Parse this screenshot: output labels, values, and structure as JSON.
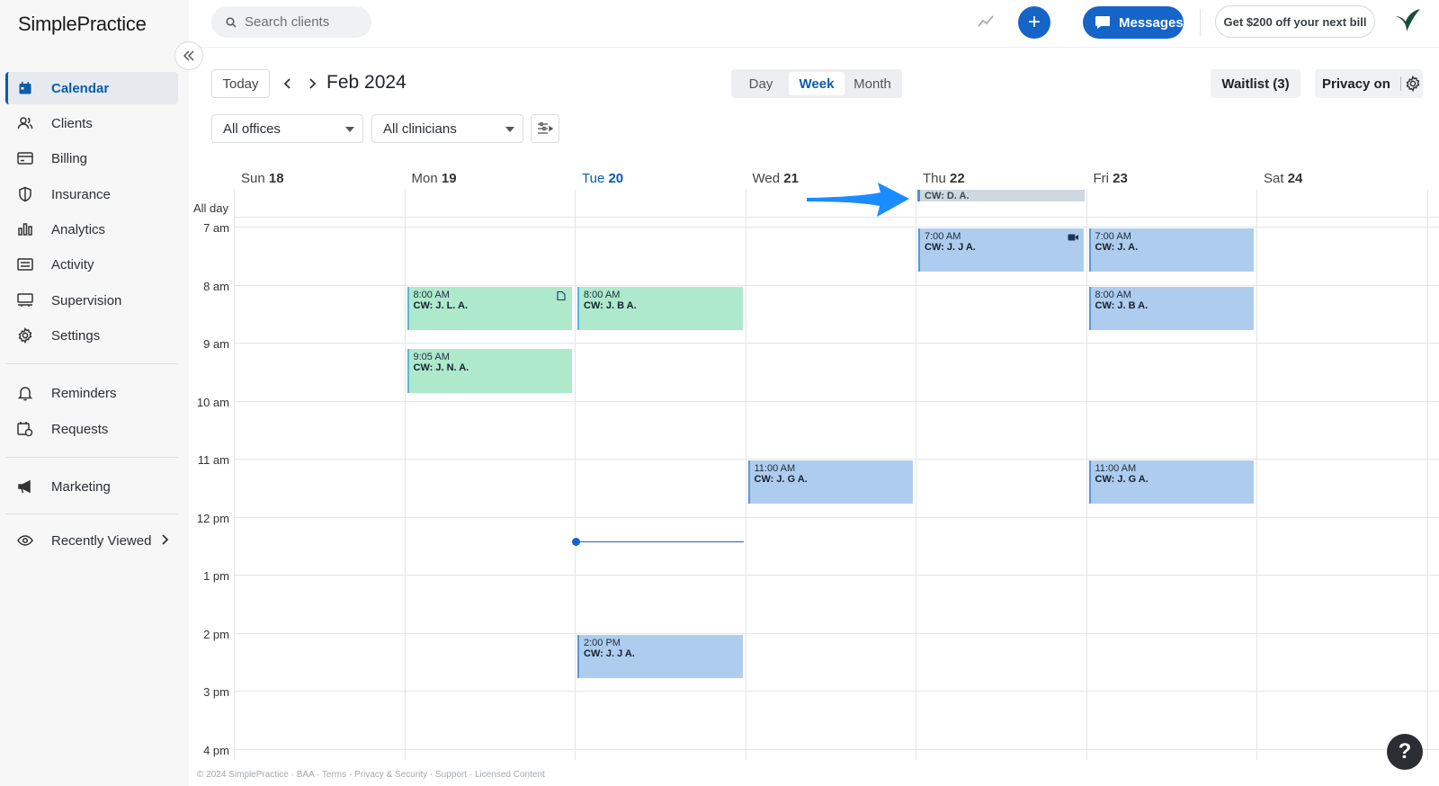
{
  "brand": {
    "logo_text": "SimplePractice",
    "accent": "#1565c8"
  },
  "sidebar": {
    "items": [
      {
        "label": "Calendar",
        "icon": "calendar-icon",
        "active": true
      },
      {
        "label": "Clients",
        "icon": "users-icon"
      },
      {
        "label": "Billing",
        "icon": "credit-card-icon"
      },
      {
        "label": "Insurance",
        "icon": "shield-icon"
      },
      {
        "label": "Analytics",
        "icon": "bar-chart-icon"
      },
      {
        "label": "Activity",
        "icon": "list-icon"
      },
      {
        "label": "Supervision",
        "icon": "supervision-icon"
      },
      {
        "label": "Settings",
        "icon": "gear-icon"
      },
      {
        "label": "Reminders",
        "icon": "bell-icon"
      },
      {
        "label": "Requests",
        "icon": "calendar-request-icon"
      },
      {
        "label": "Marketing",
        "icon": "megaphone-icon"
      },
      {
        "label": "Recently Viewed",
        "icon": "eye-icon"
      }
    ]
  },
  "topbar": {
    "search_placeholder": "Search clients",
    "messages_label": "Messages",
    "promo_label": "Get $200 off your next bill"
  },
  "toolbar": {
    "today_label": "Today",
    "period_title": "Feb 2024",
    "views": [
      "Day",
      "Week",
      "Month"
    ],
    "active_view": "Week",
    "waitlist_label": "Waitlist (3)",
    "privacy_label": "Privacy on",
    "office_filter": "All offices",
    "clinician_filter": "All clinicians"
  },
  "calendar": {
    "days": [
      {
        "name": "Sun",
        "num": "18"
      },
      {
        "name": "Mon",
        "num": "19"
      },
      {
        "name": "Tue",
        "num": "20",
        "today": true
      },
      {
        "name": "Wed",
        "num": "21"
      },
      {
        "name": "Thu",
        "num": "22"
      },
      {
        "name": "Fri",
        "num": "23"
      },
      {
        "name": "Sat",
        "num": "24"
      }
    ],
    "allday_label": "All day",
    "hours": [
      "7 am",
      "8 am",
      "9 am",
      "10 am",
      "11 am",
      "12 pm",
      "1 pm",
      "2 pm",
      "3 pm",
      "4 pm"
    ],
    "allday_events": [
      {
        "day": 4,
        "name": "CW: D. A."
      }
    ],
    "events": [
      {
        "day": 4,
        "time": "7:00 AM",
        "name": "CW: J. J A.",
        "start_hour": 7.0,
        "end_hour": 7.75,
        "color": "blue",
        "icon": "video-icon"
      },
      {
        "day": 5,
        "time": "7:00 AM",
        "name": "CW: J. A.",
        "start_hour": 7.0,
        "end_hour": 7.75,
        "color": "blue"
      },
      {
        "day": 1,
        "time": "8:00 AM",
        "name": "CW: J. L. A.",
        "start_hour": 8.0,
        "end_hour": 8.75,
        "color": "green",
        "icon": "note-icon"
      },
      {
        "day": 2,
        "time": "8:00 AM",
        "name": "CW: J. B A.",
        "start_hour": 8.0,
        "end_hour": 8.75,
        "color": "green"
      },
      {
        "day": 5,
        "time": "8:00 AM",
        "name": "CW: J. B A.",
        "start_hour": 8.0,
        "end_hour": 8.75,
        "color": "blue"
      },
      {
        "day": 1,
        "time": "9:05 AM",
        "name": "CW: J. N. A.",
        "start_hour": 9.083,
        "end_hour": 9.833,
        "color": "green"
      },
      {
        "day": 3,
        "time": "11:00 AM",
        "name": "CW: J. G A.",
        "start_hour": 11.0,
        "end_hour": 11.75,
        "color": "blue"
      },
      {
        "day": 5,
        "time": "11:00 AM",
        "name": "CW: J. G A.",
        "start_hour": 11.0,
        "end_hour": 11.75,
        "color": "blue"
      },
      {
        "day": 2,
        "time": "2:00 PM",
        "name": "CW: J. J A.",
        "start_hour": 14.0,
        "end_hour": 14.75,
        "color": "blue"
      }
    ],
    "now_hour": 12.42
  },
  "footer": {
    "text": "© 2024 SimplePractice · BAA · Terms · Privacy & Security · Support · Licensed Content"
  },
  "help_label": "?"
}
